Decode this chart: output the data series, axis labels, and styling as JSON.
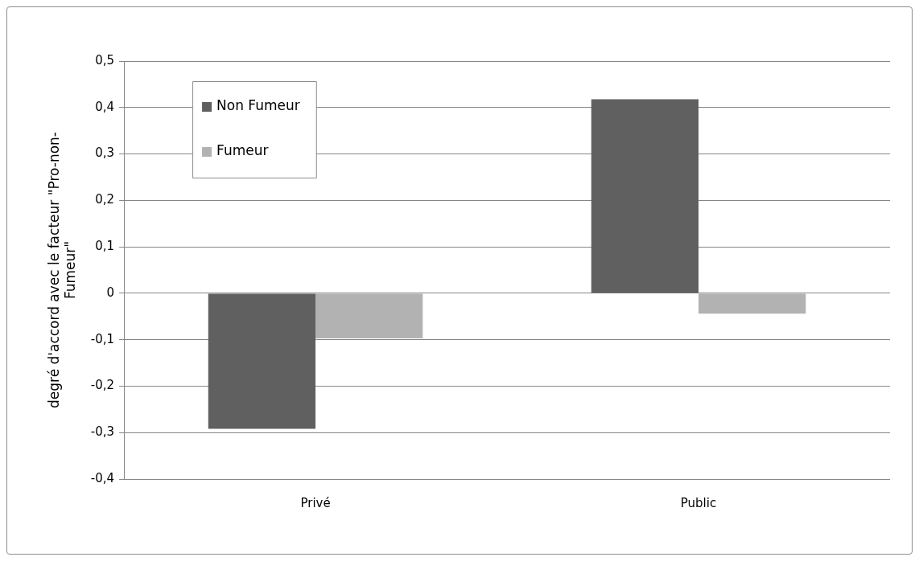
{
  "chart_data": {
    "type": "bar",
    "ylabel": "degré d'accord avec le facteur \"Pro-non-Fumeur\"",
    "categories": [
      "Privé",
      "Public"
    ],
    "series": [
      {
        "name": "Non Fumeur",
        "color": "#606060",
        "values": [
          -0.292,
          0.418
        ]
      },
      {
        "name": "Fumeur",
        "color": "#b2b2b2",
        "values": [
          -0.097,
          -0.044
        ]
      }
    ],
    "ylim": [
      -0.4,
      0.5
    ],
    "yticks": [
      {
        "value": -0.4,
        "label": "-0,4"
      },
      {
        "value": -0.3,
        "label": "-0,3"
      },
      {
        "value": -0.2,
        "label": "-0,2"
      },
      {
        "value": -0.1,
        "label": "-0,1"
      },
      {
        "value": 0,
        "label": "0"
      },
      {
        "value": 0.1,
        "label": "0,1"
      },
      {
        "value": 0.2,
        "label": "0,2"
      },
      {
        "value": 0.3,
        "label": "0,3"
      },
      {
        "value": 0.4,
        "label": "0,4"
      },
      {
        "value": 0.5,
        "label": "0,5"
      }
    ],
    "grid": "y",
    "legend": "top left"
  }
}
